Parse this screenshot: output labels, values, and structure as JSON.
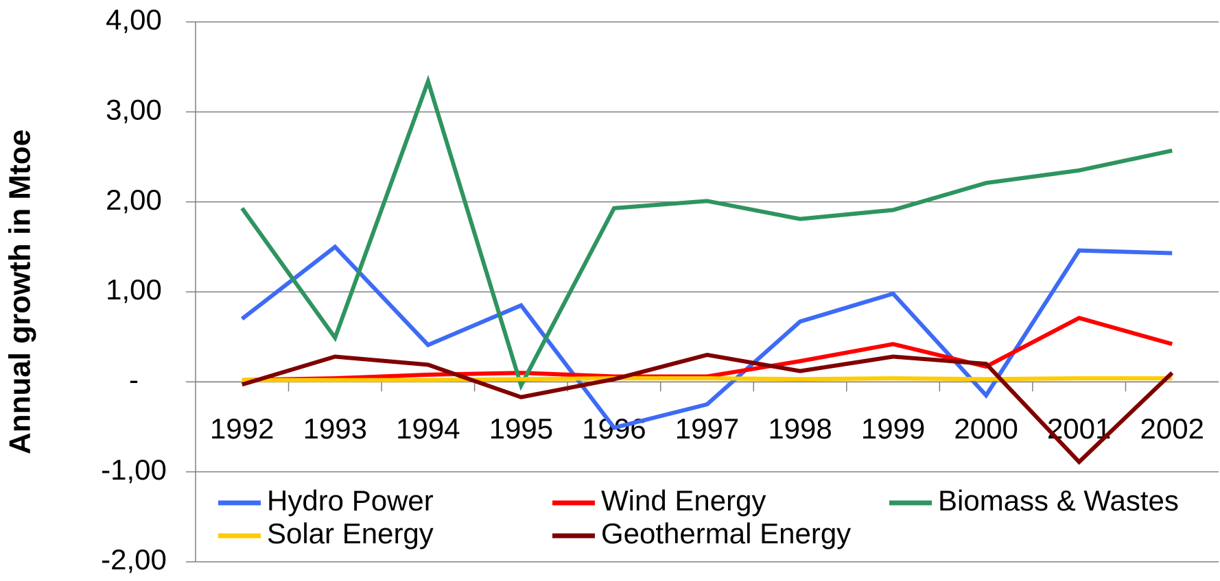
{
  "chart_data": {
    "type": "line",
    "y_label": "Annual growth in Mtoe",
    "categories": [
      "1992",
      "1993",
      "1994",
      "1995",
      "1996",
      "1997",
      "1998",
      "1999",
      "2000",
      "2001",
      "2002"
    ],
    "series": [
      {
        "name": "Hydro Power",
        "color": "#3d6bf5",
        "values": [
          0.7,
          1.5,
          0.41,
          0.85,
          -0.51,
          -0.25,
          0.67,
          0.98,
          -0.15,
          1.46,
          1.43
        ]
      },
      {
        "name": "Wind Energy",
        "color": "#ff0000",
        "values": [
          0.02,
          0.04,
          0.08,
          0.1,
          0.06,
          0.06,
          0.23,
          0.42,
          0.17,
          0.71,
          0.42
        ]
      },
      {
        "name": "Biomass & Wastes",
        "color": "#2e9460",
        "values": [
          1.93,
          0.49,
          3.34,
          -0.04,
          1.93,
          2.01,
          1.81,
          1.91,
          2.21,
          2.35,
          2.57
        ]
      },
      {
        "name": "Solar Energy",
        "color": "#ffcc00",
        "values": [
          0.02,
          0.02,
          0.02,
          0.03,
          0.04,
          0.04,
          0.03,
          0.04,
          0.03,
          0.04,
          0.04
        ]
      },
      {
        "name": "Geothermal Energy",
        "color": "#800000",
        "values": [
          -0.03,
          0.28,
          0.19,
          -0.17,
          0.03,
          0.3,
          0.12,
          0.28,
          0.2,
          -0.89,
          0.1
        ]
      }
    ],
    "ylim": [
      -2,
      4
    ],
    "yticks": [
      {
        "value": -2,
        "label": "-2,00"
      },
      {
        "value": -1,
        "label": "-1,00"
      },
      {
        "value": 0,
        "label": "-"
      },
      {
        "value": 1,
        "label": "1,00"
      },
      {
        "value": 2,
        "label": "2,00"
      },
      {
        "value": 3,
        "label": "3,00"
      },
      {
        "value": 4,
        "label": "4,00"
      }
    ],
    "grid": true
  }
}
